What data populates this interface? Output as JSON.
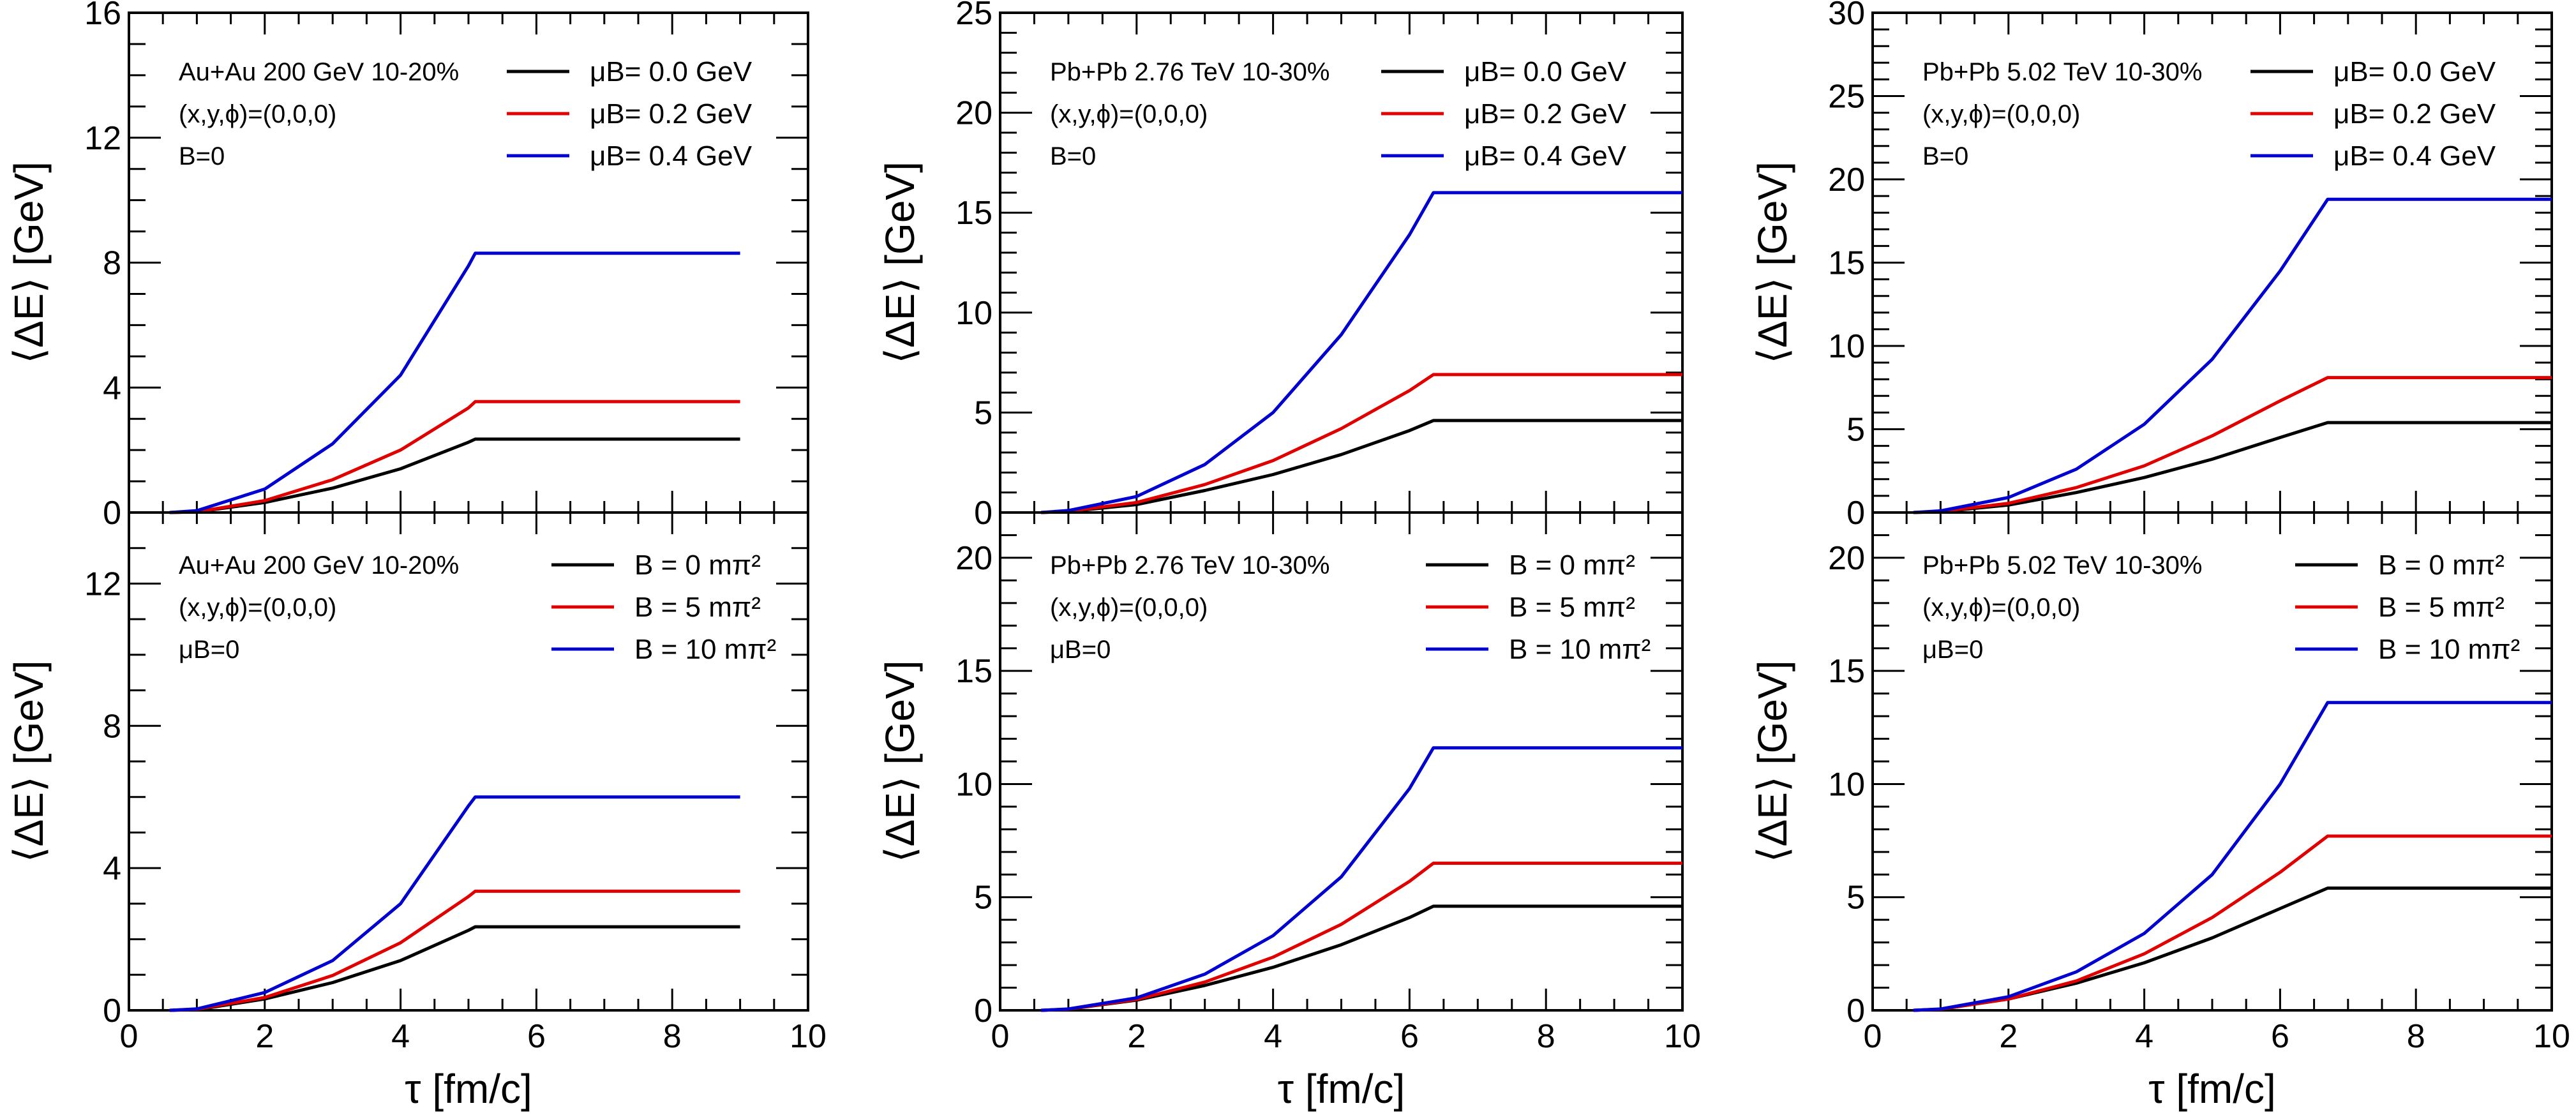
{
  "chart_data": [
    {
      "type": "line",
      "panel": "top-left",
      "xlabel": "",
      "ylabel": "⟨ΔE⟩ [GeV]",
      "xlim": [
        0,
        10
      ],
      "ylim": [
        0,
        16
      ],
      "yticks": [
        "0",
        "4",
        "8",
        "12",
        "16"
      ],
      "xticks": [],
      "annotations": [
        "Au+Au 200 GeV 10-20%",
        "(x,y,ϕ)=(0,0,0)",
        "B=0"
      ],
      "legend_position": "top-right",
      "series": [
        {
          "name": "μB= 0.0 GeV",
          "color": "#000000",
          "x": [
            0.6,
            1,
            2,
            3,
            4,
            5,
            5.1,
            9
          ],
          "values": [
            0,
            0.02,
            0.32,
            0.78,
            1.4,
            2.25,
            2.35,
            2.35
          ]
        },
        {
          "name": "μB= 0.2 GeV",
          "color": "#e00000",
          "x": [
            0.6,
            1,
            2,
            3,
            4,
            5,
            5.1,
            9
          ],
          "values": [
            0,
            0.02,
            0.38,
            1.05,
            2.0,
            3.35,
            3.55,
            3.55
          ]
        },
        {
          "name": "μB= 0.4 GeV",
          "color": "#0000d0",
          "x": [
            0.6,
            1,
            2,
            3,
            4,
            5,
            5.1,
            9
          ],
          "values": [
            0,
            0.06,
            0.75,
            2.2,
            4.4,
            7.9,
            8.3,
            8.3
          ]
        }
      ]
    },
    {
      "type": "line",
      "panel": "top-middle",
      "xlabel": "",
      "ylabel": "⟨ΔE⟩ [GeV]",
      "xlim": [
        0,
        10
      ],
      "ylim": [
        0,
        25
      ],
      "yticks": [
        "0",
        "5",
        "10",
        "15",
        "20",
        "25"
      ],
      "xticks": [],
      "annotations": [
        "Pb+Pb 2.76 TeV 10-30%",
        "(x,y,ϕ)=(0,0,0)",
        "B=0"
      ],
      "legend_position": "top-right",
      "series": [
        {
          "name": "μB= 0.0 GeV",
          "color": "#000000",
          "x": [
            0.6,
            1,
            2,
            3,
            4,
            5,
            6,
            6.35,
            10
          ],
          "values": [
            0,
            0.05,
            0.4,
            1.1,
            1.9,
            2.9,
            4.1,
            4.6,
            4.6
          ]
        },
        {
          "name": "μB= 0.2 GeV",
          "color": "#e00000",
          "x": [
            0.6,
            1,
            2,
            3,
            4,
            5,
            6,
            6.35,
            10
          ],
          "values": [
            0,
            0.06,
            0.5,
            1.4,
            2.6,
            4.2,
            6.1,
            6.9,
            6.9
          ]
        },
        {
          "name": "μB= 0.4 GeV",
          "color": "#0000d0",
          "x": [
            0.6,
            1,
            2,
            3,
            4,
            5,
            6,
            6.35,
            10
          ],
          "values": [
            0,
            0.1,
            0.8,
            2.4,
            5.0,
            8.9,
            13.9,
            16.0,
            16.0
          ]
        }
      ]
    },
    {
      "type": "line",
      "panel": "top-right",
      "xlabel": "",
      "ylabel": "⟨ΔE⟩ [GeV]",
      "xlim": [
        0,
        10
      ],
      "ylim": [
        0,
        30
      ],
      "yticks": [
        "0",
        "5",
        "10",
        "15",
        "20",
        "25",
        "30"
      ],
      "xticks": [],
      "annotations": [
        "Pb+Pb 5.02 TeV 10-30%",
        "(x,y,ϕ)=(0,0,0)",
        "B=0"
      ],
      "legend_position": "top-right",
      "series": [
        {
          "name": "μB= 0.0 GeV",
          "color": "#000000",
          "x": [
            0.6,
            1,
            2,
            3,
            4,
            5,
            6,
            6.7,
            10
          ],
          "values": [
            0,
            0.05,
            0.45,
            1.2,
            2.1,
            3.2,
            4.5,
            5.4,
            5.4
          ]
        },
        {
          "name": "μB= 0.2 GeV",
          "color": "#e00000",
          "x": [
            0.6,
            1,
            2,
            3,
            4,
            5,
            6,
            6.7,
            10
          ],
          "values": [
            0,
            0.06,
            0.55,
            1.5,
            2.8,
            4.6,
            6.7,
            8.1,
            8.1
          ]
        },
        {
          "name": "μB= 0.4 GeV",
          "color": "#0000d0",
          "x": [
            0.6,
            1,
            2,
            3,
            4,
            5,
            6,
            6.7,
            10
          ],
          "values": [
            0,
            0.1,
            0.9,
            2.6,
            5.3,
            9.2,
            14.5,
            18.8,
            18.8
          ]
        }
      ]
    },
    {
      "type": "line",
      "panel": "bottom-left",
      "xlabel": "τ [fm/c]",
      "ylabel": "⟨ΔE⟩ [GeV]",
      "xlim": [
        0,
        10
      ],
      "ylim": [
        0,
        14
      ],
      "yticks": [
        "0",
        "4",
        "8",
        "12"
      ],
      "xticks": [
        "0",
        "2",
        "4",
        "6",
        "8",
        "10"
      ],
      "annotations": [
        "Au+Au 200 GeV 10-20%",
        "(x,y,ϕ)=(0,0,0)",
        "μB=0"
      ],
      "legend_position": "top-right",
      "series": [
        {
          "name": "B = 0 mπ²",
          "color": "#000000",
          "x": [
            0.6,
            1,
            2,
            3,
            4,
            5,
            5.1,
            9
          ],
          "values": [
            0,
            0.02,
            0.32,
            0.78,
            1.4,
            2.25,
            2.35,
            2.35
          ]
        },
        {
          "name": "B = 5 mπ²",
          "color": "#e00000",
          "x": [
            0.6,
            1,
            2,
            3,
            4,
            5,
            5.1,
            9
          ],
          "values": [
            0,
            0.03,
            0.36,
            0.98,
            1.9,
            3.2,
            3.35,
            3.35
          ]
        },
        {
          "name": "B = 10 mπ²",
          "color": "#0000d0",
          "x": [
            0.6,
            1,
            2,
            3,
            4,
            5,
            5.1,
            9
          ],
          "values": [
            0,
            0.04,
            0.5,
            1.4,
            3.0,
            5.75,
            6.0,
            6.0
          ]
        }
      ]
    },
    {
      "type": "line",
      "panel": "bottom-middle",
      "xlabel": "τ [fm/c]",
      "ylabel": "⟨ΔE⟩ [GeV]",
      "xlim": [
        0,
        10
      ],
      "ylim": [
        0,
        22
      ],
      "yticks": [
        "0",
        "5",
        "10",
        "15",
        "20"
      ],
      "xticks": [
        "0",
        "2",
        "4",
        "6",
        "8",
        "10"
      ],
      "annotations": [
        "Pb+Pb 2.76 TeV 10-30%",
        "(x,y,ϕ)=(0,0,0)",
        "μB=0"
      ],
      "legend_position": "top-right",
      "series": [
        {
          "name": "B = 0 mπ²",
          "color": "#000000",
          "x": [
            0.6,
            1,
            2,
            3,
            4,
            5,
            6,
            6.35,
            10
          ],
          "values": [
            0,
            0.05,
            0.45,
            1.1,
            1.9,
            2.9,
            4.1,
            4.6,
            4.6
          ]
        },
        {
          "name": "B = 5 mπ²",
          "color": "#e00000",
          "x": [
            0.6,
            1,
            2,
            3,
            4,
            5,
            6,
            6.35,
            10
          ],
          "values": [
            0,
            0.05,
            0.48,
            1.25,
            2.35,
            3.8,
            5.7,
            6.5,
            6.5
          ]
        },
        {
          "name": "B = 10 mπ²",
          "color": "#0000d0",
          "x": [
            0.6,
            1,
            2,
            3,
            4,
            5,
            6,
            6.35,
            10
          ],
          "values": [
            0,
            0.06,
            0.55,
            1.6,
            3.3,
            5.9,
            9.8,
            11.6,
            11.6
          ]
        }
      ]
    },
    {
      "type": "line",
      "panel": "bottom-right",
      "xlabel": "τ [fm/c]",
      "ylabel": "⟨ΔE⟩ [GeV]",
      "xlim": [
        0,
        10
      ],
      "ylim": [
        0,
        22
      ],
      "yticks": [
        "0",
        "5",
        "10",
        "15",
        "20"
      ],
      "xticks": [
        "0",
        "2",
        "4",
        "6",
        "8",
        "10"
      ],
      "annotations": [
        "Pb+Pb 5.02 TeV 10-30%",
        "(x,y,ϕ)=(0,0,0)",
        "μB=0"
      ],
      "legend_position": "top-right",
      "series": [
        {
          "name": "B = 0 mπ²",
          "color": "#000000",
          "x": [
            0.6,
            1,
            2,
            3,
            4,
            5,
            6,
            6.7,
            10
          ],
          "values": [
            0,
            0.05,
            0.5,
            1.2,
            2.1,
            3.2,
            4.5,
            5.4,
            5.4
          ]
        },
        {
          "name": "B = 5 mπ²",
          "color": "#e00000",
          "x": [
            0.6,
            1,
            2,
            3,
            4,
            5,
            6,
            6.7,
            10
          ],
          "values": [
            0,
            0.05,
            0.5,
            1.3,
            2.5,
            4.1,
            6.1,
            7.7,
            7.7
          ]
        },
        {
          "name": "B = 10 mπ²",
          "color": "#0000d0",
          "x": [
            0.6,
            1,
            2,
            3,
            4,
            5,
            6,
            6.7,
            10
          ],
          "values": [
            0,
            0.06,
            0.6,
            1.7,
            3.4,
            6.0,
            10.0,
            13.6,
            13.6
          ]
        }
      ]
    }
  ]
}
